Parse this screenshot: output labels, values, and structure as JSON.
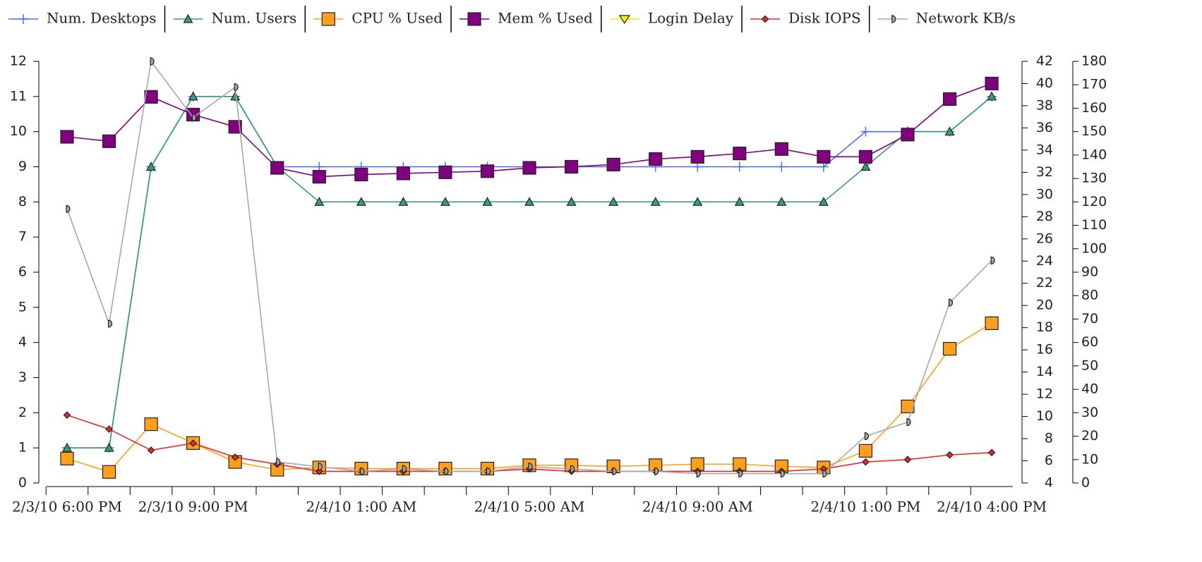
{
  "chart_data": {
    "type": "line",
    "categories": [
      "2/3/10 6:00 PM",
      null,
      null,
      "2/3/10 9:00 PM",
      null,
      null,
      null,
      "2/4/10 1:00 AM",
      null,
      null,
      null,
      "2/4/10 5:00 AM",
      null,
      null,
      null,
      "2/4/10 9:00 AM",
      null,
      null,
      null,
      "2/4/10 1:00 PM",
      null,
      null,
      "2/4/10 4:00 PM"
    ],
    "ylim": [
      0,
      12
    ],
    "yticks": [
      0,
      1,
      2,
      3,
      4,
      5,
      6,
      7,
      8,
      9,
      10,
      11,
      12
    ],
    "y2lim": [
      4,
      42
    ],
    "y2ticks": [
      4,
      6,
      8,
      10,
      12,
      14,
      16,
      18,
      20,
      22,
      24,
      26,
      28,
      30,
      32,
      34,
      36,
      38,
      40,
      42
    ],
    "y3lim": [
      0,
      180
    ],
    "y3ticks": [
      0,
      10,
      20,
      30,
      40,
      50,
      60,
      70,
      80,
      90,
      100,
      110,
      120,
      130,
      140,
      150,
      160,
      170,
      180
    ],
    "series": [
      {
        "name": "Num. Desktops",
        "color": "#4a6cf0",
        "marker": "plus",
        "axis": "y",
        "values": [
          1,
          1,
          9,
          11,
          11,
          9,
          9,
          9,
          9,
          9,
          9,
          9,
          9,
          9,
          9,
          9,
          9,
          9,
          9,
          10,
          10,
          10,
          11
        ]
      },
      {
        "name": "Num. Users",
        "color": "#3a9a7a",
        "marker": "triangle",
        "axis": "y",
        "values": [
          1,
          1,
          9,
          11,
          11,
          9,
          8,
          8,
          8,
          8,
          8,
          8,
          8,
          8,
          8,
          8,
          8,
          8,
          8,
          9,
          10,
          10,
          11
        ]
      },
      {
        "name": "CPU % Used",
        "color": "#ffa01c",
        "marker": "square",
        "axis": "y2",
        "values": [
          6.2,
          5.0,
          9.3,
          7.6,
          5.9,
          5.2,
          5.4,
          5.3,
          5.3,
          5.3,
          5.3,
          5.6,
          5.6,
          5.5,
          5.6,
          5.7,
          5.7,
          5.5,
          5.4,
          6.9,
          10.9,
          16.1,
          18.4
        ]
      },
      {
        "name": "Mem % Used",
        "color": "#800080",
        "marker": "square",
        "axis": "y2",
        "values": [
          35.2,
          34.8,
          38.8,
          37.2,
          36.1,
          32.4,
          31.6,
          31.8,
          31.9,
          32.0,
          32.1,
          32.4,
          32.5,
          32.7,
          33.2,
          33.4,
          33.7,
          34.1,
          33.4,
          33.4,
          35.4,
          38.6,
          40.0
        ]
      },
      {
        "name": "Login Delay",
        "color": "#f0f000",
        "marker": "invtriangle",
        "axis": "y",
        "values": [
          null,
          null,
          null,
          null,
          null,
          null,
          null,
          null,
          null,
          null,
          null,
          null,
          null,
          null,
          null,
          null,
          null,
          null,
          null,
          null,
          null,
          null,
          null
        ]
      },
      {
        "name": "Disk IOPS",
        "color": "#e82828",
        "marker": "diamond",
        "axis": "y3",
        "values": [
          29,
          23,
          14,
          17,
          11,
          8,
          5,
          5,
          5,
          5,
          5,
          6,
          5,
          5,
          5,
          5,
          5,
          5,
          6,
          9,
          10,
          12,
          13
        ]
      },
      {
        "name": "Network KB/s",
        "color": "#a8a8a8",
        "marker": "half",
        "axis": "y3",
        "values": [
          117,
          68,
          180,
          156,
          169,
          9,
          7,
          5,
          6,
          5,
          5,
          7,
          6,
          5,
          5,
          4,
          4,
          4,
          4,
          20,
          26,
          77,
          95
        ]
      }
    ]
  }
}
